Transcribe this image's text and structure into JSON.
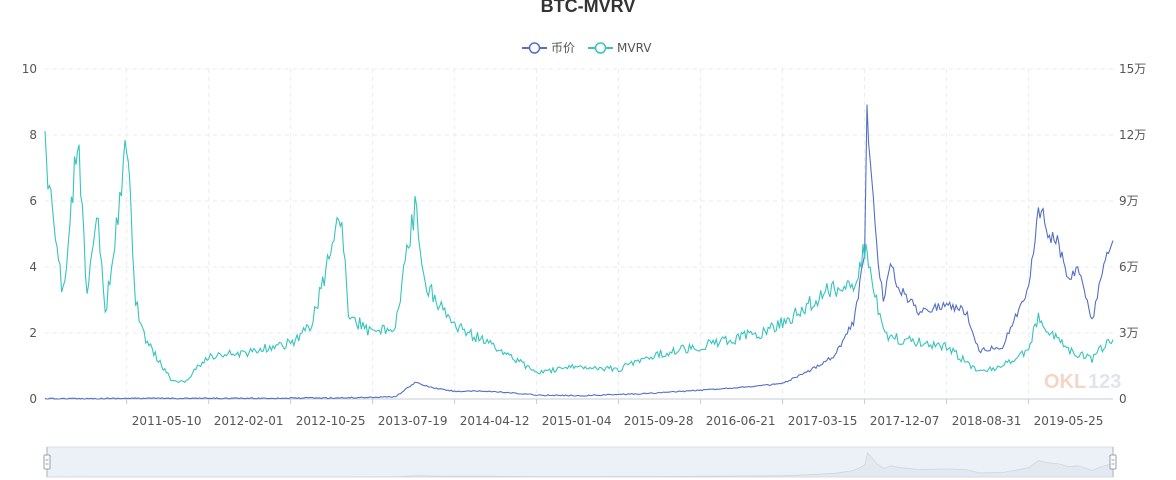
{
  "chart_data": {
    "type": "line",
    "title": "BTC-MVRV",
    "legend": {
      "placement": "top-center",
      "entries": [
        "币价",
        "MVRV"
      ]
    },
    "x_tick_labels": [
      "2011-05-10",
      "2012-02-01",
      "2012-10-25",
      "2013-07-19",
      "2014-04-12",
      "2015-01-04",
      "2015-09-28",
      "2016-06-21",
      "2017-03-15",
      "2017-12-07",
      "2018-08-31",
      "2019-05-25"
    ],
    "x_range": [
      "2010-08-17",
      "2020-02-24"
    ],
    "y_left": {
      "ticks": [
        "0",
        "2",
        "4",
        "6",
        "8",
        "10"
      ],
      "range": [
        0,
        10
      ]
    },
    "y_right": {
      "ticks": [
        "0",
        "3万",
        "6万",
        "9万",
        "12万",
        "15万"
      ],
      "range": [
        0,
        150000
      ]
    },
    "grid": "dashed",
    "series": [
      {
        "name": "币价",
        "axis": "right",
        "color": "#5470c6",
        "x": [
          "2010-08-17",
          "2011-06-01",
          "2012-06-01",
          "2013-04-10",
          "2013-10-01",
          "2013-12-04",
          "2014-02-01",
          "2014-04-12",
          "2014-08-01",
          "2015-01-04",
          "2015-06-01",
          "2016-01-01",
          "2016-06-21",
          "2017-01-01",
          "2017-03-15",
          "2017-06-01",
          "2017-09-01",
          "2017-11-01",
          "2017-12-07",
          "2017-12-15",
          "2018-01-15",
          "2018-02-06",
          "2018-03-01",
          "2018-04-01",
          "2018-06-01",
          "2018-08-31",
          "2018-11-01",
          "2018-12-15",
          "2019-03-01",
          "2019-05-25",
          "2019-06-26",
          "2019-08-01",
          "2019-09-01",
          "2019-10-01",
          "2019-11-01",
          "2019-12-18",
          "2020-01-15",
          "2020-02-24"
        ],
        "values": [
          100,
          300,
          300,
          500,
          1000,
          7500,
          5000,
          3500,
          3500,
          1800,
          1500,
          2500,
          4000,
          6000,
          7000,
          12000,
          20000,
          35000,
          65000,
          130000,
          70000,
          45000,
          60000,
          50000,
          40000,
          43000,
          40000,
          22000,
          24000,
          50000,
          88000,
          75000,
          70000,
          55000,
          60000,
          35000,
          55000,
          72000
        ]
      },
      {
        "name": "MVRV",
        "axis": "left",
        "color": "#36c4bd",
        "x": [
          "2010-08-17",
          "2010-09-10",
          "2010-10-15",
          "2010-11-01",
          "2010-12-01",
          "2011-01-01",
          "2011-02-01",
          "2011-03-01",
          "2011-04-01",
          "2011-05-10",
          "2011-06-08",
          "2011-07-01",
          "2011-08-01",
          "2011-09-01",
          "2011-10-01",
          "2011-11-15",
          "2012-01-01",
          "2012-02-01",
          "2012-06-01",
          "2012-10-25",
          "2013-01-01",
          "2013-04-10",
          "2013-05-01",
          "2013-07-19",
          "2013-10-01",
          "2013-12-04",
          "2014-01-01",
          "2014-02-01",
          "2014-04-12",
          "2014-08-01",
          "2015-01-04",
          "2015-06-01",
          "2015-09-28",
          "2016-01-01",
          "2016-06-21",
          "2016-10-01",
          "2017-01-01",
          "2017-03-15",
          "2017-06-01",
          "2017-09-01",
          "2017-11-01",
          "2017-12-07",
          "2017-12-15",
          "2018-01-15",
          "2018-02-06",
          "2018-04-01",
          "2018-08-31",
          "2018-12-15",
          "2019-03-01",
          "2019-05-25",
          "2019-06-26",
          "2019-08-01",
          "2019-10-01",
          "2019-12-18",
          "2020-01-15",
          "2020-02-24"
        ],
        "values": [
          7.5,
          5.5,
          3.2,
          4.5,
          8.2,
          3.0,
          5.8,
          2.5,
          4.8,
          7.8,
          3.0,
          2.0,
          1.5,
          1.0,
          0.6,
          0.5,
          1.0,
          1.3,
          1.4,
          1.7,
          2.2,
          5.7,
          2.5,
          2.0,
          2.2,
          5.9,
          3.5,
          3.2,
          2.2,
          1.7,
          0.8,
          1.0,
          0.9,
          1.3,
          1.6,
          1.8,
          2.0,
          2.3,
          2.8,
          3.4,
          3.5,
          4.5,
          4.5,
          3.0,
          2.0,
          1.8,
          1.6,
          0.8,
          1.0,
          1.5,
          2.5,
          2.0,
          1.5,
          1.2,
          1.5,
          1.8
        ]
      }
    ]
  },
  "watermark": {
    "text_a": "OKL",
    "text_b": "123"
  }
}
